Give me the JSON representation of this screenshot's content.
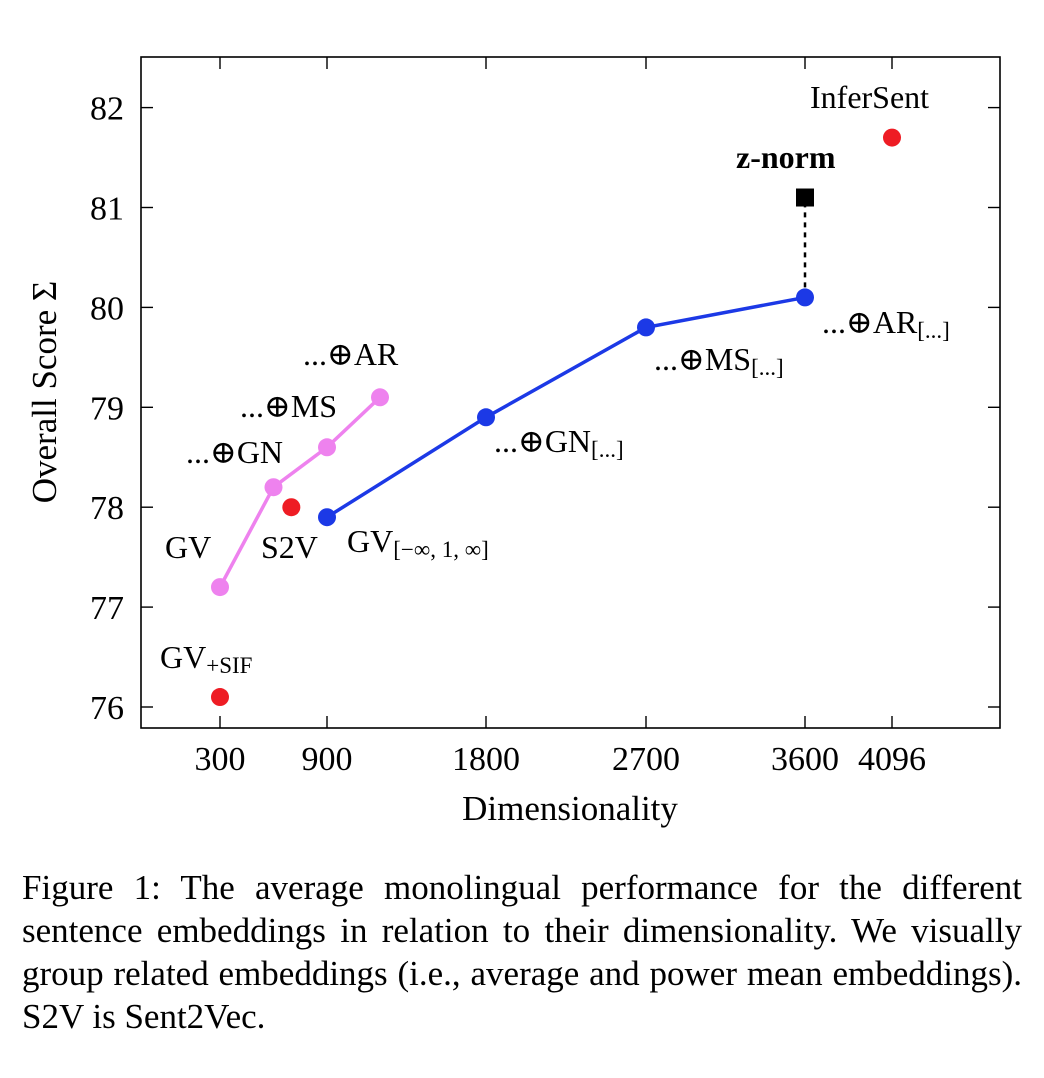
{
  "chart_data": {
    "type": "line",
    "xlabel": "Dimensionality",
    "ylabel": "Overall Score Σ",
    "xlim": [
      0,
      4800
    ],
    "ylim": [
      75.8,
      82.5
    ],
    "x_ticks": [
      300,
      900,
      1800,
      2700,
      3600,
      4096
    ],
    "y_ticks": [
      76,
      77,
      78,
      79,
      80,
      81,
      82
    ],
    "grid": false,
    "legend": "none",
    "colors": {
      "pink": "#ee82ee",
      "blue": "#1c39e6",
      "red": "#ee1c24",
      "black": "#000000"
    },
    "series": [
      {
        "style": "pink-line",
        "color": "#ee82ee",
        "points": [
          {
            "x": 300,
            "y": 77.2,
            "label": "GV"
          },
          {
            "x": 600,
            "y": 78.2,
            "label": "...⊕GN"
          },
          {
            "x": 900,
            "y": 78.6,
            "label": "...⊕MS"
          },
          {
            "x": 1200,
            "y": 79.1,
            "label": "...⊕AR"
          }
        ]
      },
      {
        "style": "blue-line",
        "color": "#1c39e6",
        "points": [
          {
            "x": 900,
            "y": 77.9,
            "label": "GV",
            "label_sub": "[−∞, 1, ∞]"
          },
          {
            "x": 1800,
            "y": 78.9,
            "label": "...⊕GN",
            "label_sub": "[...]"
          },
          {
            "x": 2700,
            "y": 79.8,
            "label": "...⊕MS",
            "label_sub": "[...]"
          },
          {
            "x": 3600,
            "y": 80.1,
            "label": "...⊕AR",
            "label_sub": "[...]"
          }
        ]
      }
    ],
    "points": [
      {
        "x": 300,
        "y": 76.1,
        "label": "GV",
        "label_sub": "+SIF",
        "color": "#ee1c24"
      },
      {
        "x": 700,
        "y": 78.0,
        "label": "S2V",
        "color": "#ee1c24"
      },
      {
        "x": 4096,
        "y": 81.7,
        "label": "InferSent",
        "color": "#ee1c24"
      },
      {
        "x": 3600,
        "y": 81.1,
        "label": "z-norm",
        "color": "#000000",
        "marker": "square"
      }
    ],
    "connectors": [
      {
        "from": [
          3600,
          80.1
        ],
        "to": [
          3600,
          81.1
        ],
        "style": "dotted"
      }
    ]
  },
  "caption": "Figure 1: The average monolingual performance for the different sentence embeddings in relation to their dimensionality. We visually group related embeddings (i.e., average and power mean embeddings). S2V is Sent2Vec."
}
